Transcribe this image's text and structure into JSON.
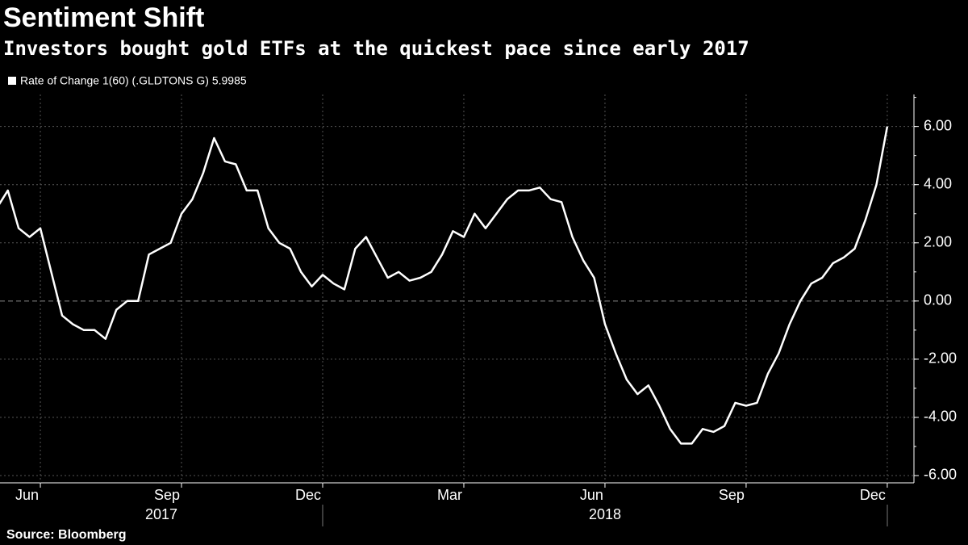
{
  "chart_data": {
    "type": "line",
    "title": "Sentiment Shift",
    "subtitle": "Investors bought gold ETFs at the quickest pace since early 2017",
    "source": "Source: Bloomberg",
    "categories": [
      null,
      null,
      null,
      null,
      "Jun",
      null,
      null,
      null,
      null,
      null,
      null,
      null,
      null,
      null,
      null,
      null,
      null,
      "Sep",
      null,
      null,
      null,
      null,
      null,
      null,
      null,
      null,
      null,
      null,
      null,
      null,
      "Dec",
      null,
      null,
      null,
      null,
      null,
      null,
      null,
      null,
      null,
      null,
      null,
      null,
      "Mar",
      null,
      null,
      null,
      null,
      null,
      null,
      null,
      null,
      null,
      null,
      null,
      null,
      "Jun",
      null,
      null,
      null,
      null,
      null,
      null,
      null,
      null,
      null,
      null,
      null,
      null,
      "Sep",
      null,
      null,
      null,
      null,
      null,
      null,
      null,
      null,
      null,
      null,
      null,
      null,
      "Dec"
    ],
    "year_labels": [
      "2017",
      "2018"
    ],
    "series": [
      {
        "name": "Rate of Change 1(60) (.GLDTONS G) 5.9985",
        "color": "#ffffff",
        "values": [
          3.2,
          3.8,
          2.5,
          2.2,
          2.5,
          1.0,
          -0.5,
          -0.8,
          -1.0,
          -1.0,
          -1.3,
          -0.3,
          0.0,
          0.0,
          1.6,
          1.8,
          2.0,
          3.0,
          3.5,
          4.4,
          5.6,
          4.8,
          4.7,
          3.8,
          3.8,
          2.5,
          2.0,
          1.8,
          1.0,
          0.5,
          0.9,
          0.6,
          0.4,
          1.8,
          2.2,
          1.5,
          0.8,
          1.0,
          0.7,
          0.8,
          1.0,
          1.6,
          2.4,
          2.2,
          3.0,
          2.5,
          3.0,
          3.5,
          3.8,
          3.8,
          3.9,
          3.5,
          3.4,
          2.2,
          1.4,
          0.8,
          -0.8,
          -1.8,
          -2.7,
          -3.2,
          -2.9,
          -3.6,
          -4.4,
          -4.9,
          -4.9,
          -4.4,
          -4.5,
          -4.3,
          -3.5,
          -3.6,
          -3.5,
          -2.5,
          -1.8,
          -0.8,
          0.0,
          0.6,
          0.8,
          1.3,
          1.5,
          1.8,
          2.8,
          4.0,
          6.0
        ]
      }
    ],
    "ylim": [
      -6.25,
      7.1
    ],
    "yticks": [
      {
        "value": -6,
        "label": "-6.00"
      },
      {
        "value": -4,
        "label": "-4.00"
      },
      {
        "value": -2,
        "label": "-2.00"
      },
      {
        "value": 0,
        "label": "0.00"
      },
      {
        "value": 2,
        "label": "2.00"
      },
      {
        "value": 4,
        "label": "4.00"
      },
      {
        "value": 6,
        "label": "6.00"
      }
    ],
    "grid": true
  }
}
